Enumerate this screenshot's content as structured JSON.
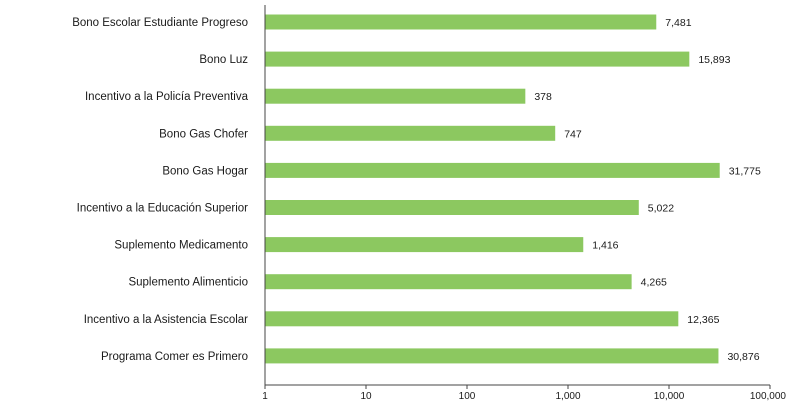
{
  "chart_data": {
    "type": "bar",
    "orientation": "horizontal",
    "x_scale": "log",
    "xlim": [
      1,
      100000
    ],
    "grid": false,
    "bar_color": "#8cc860",
    "categories": [
      "Bono Escolar Estudiante Progreso",
      "Bono Luz",
      "Incentivo a la Policía Preventiva",
      "Bono Gas Chofer",
      "Bono Gas Hogar",
      "Incentivo a la Educación Superior",
      "Suplemento Medicamento",
      "Suplemento Alimenticio",
      "Incentivo a la Asistencia Escolar",
      "Programa Comer es Primero"
    ],
    "values": [
      7481,
      15893,
      378,
      747,
      31775,
      5022,
      1416,
      4265,
      12365,
      30876
    ],
    "value_labels": [
      "7,481",
      "15,893",
      "378",
      "747",
      "31,775",
      "5,022",
      "1,416",
      "4,265",
      "12,365",
      "30,876"
    ],
    "x_ticks": [
      1,
      10,
      100,
      1000,
      10000,
      100000
    ],
    "x_tick_labels": [
      "1",
      "10",
      "100",
      "1,000",
      "10,000",
      "100,000"
    ]
  }
}
